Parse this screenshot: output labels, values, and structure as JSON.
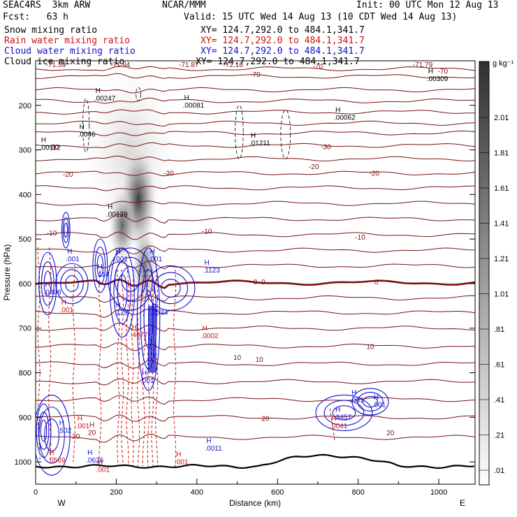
{
  "header": {
    "model": "SEAC4RS  3km ARW",
    "org": "NCAR/MMM",
    "init": "Init: 00 UTC Mon 12 Aug 13",
    "fcst": "Fcst:   63 h",
    "valid": "Valid: 15 UTC Wed 14 Aug 13 (10 CDT Wed 14 Aug 13)"
  },
  "fields": [
    {
      "name": "Snow mixing ratio",
      "xy": "XY= 124.7,292.0 to 484.1,341.7",
      "color": "#000000"
    },
    {
      "name": "Rain water mixing ratio",
      "xy": "XY= 124.7,292.0 to 484.1,341.7",
      "color": "#d01010"
    },
    {
      "name": "Cloud water mixing ratio",
      "xy": "XY= 124.7,292.0 to 484.1,341.7",
      "color": "#1010d0"
    },
    {
      "name": "Cloud ice mixing ratio",
      "xy": "XY= 124.7,292.0 to 484.1,341.7",
      "color": "#000000"
    }
  ],
  "colorbar": {
    "unit": "g kg⁻¹",
    "labels": [
      "2.01",
      "1.81",
      "1.61",
      "1.41",
      "1.21",
      "1.01",
      ".81",
      ".61",
      ".41",
      ".21",
      ".01"
    ]
  },
  "chart_data": {
    "type": "heatmap",
    "xlabel": "Distance (km)",
    "ylabel": "Pressure (hPa)",
    "xlim": [
      0,
      1090
    ],
    "ylim": [
      1050,
      100
    ],
    "x_ticks": [
      "0",
      "200",
      "400",
      "600",
      "800",
      "1000"
    ],
    "y_ticks": [
      "200",
      "300",
      "400",
      "500",
      "600",
      "700",
      "800",
      "900",
      "1000"
    ],
    "x_ends": [
      "W",
      "E"
    ],
    "temperature_labels": [
      {
        "text": "-71.59",
        "x": 50,
        "p": 108
      },
      {
        "text": "-71.94",
        "x": 210,
        "p": 108
      },
      {
        "text": "-71.87",
        "x": 380,
        "p": 108
      },
      {
        "text": "-72.16",
        "x": 490,
        "p": 108
      },
      {
        "text": "-70",
        "x": 700,
        "p": 112
      },
      {
        "text": "-71.79",
        "x": 960,
        "p": 108
      },
      {
        "text": "-70",
        "x": 1010,
        "p": 123
      },
      {
        "text": "-70",
        "x": 545,
        "p": 130
      },
      {
        "text": "-30",
        "x": 45,
        "p": 292
      },
      {
        "text": "-30",
        "x": 720,
        "p": 292
      },
      {
        "text": "-20",
        "x": 80,
        "p": 354
      },
      {
        "text": "-20",
        "x": 330,
        "p": 352
      },
      {
        "text": "-20",
        "x": 690,
        "p": 337
      },
      {
        "text": "-20",
        "x": 840,
        "p": 352
      },
      {
        "text": "-10",
        "x": 40,
        "p": 486
      },
      {
        "text": "-10",
        "x": 425,
        "p": 482
      },
      {
        "text": "-10",
        "x": 805,
        "p": 495
      },
      {
        "text": "0",
        "x": 545,
        "p": 595
      },
      {
        "text": "0",
        "x": 565,
        "p": 595
      },
      {
        "text": "0",
        "x": 845,
        "p": 595
      },
      {
        "text": "10",
        "x": 500,
        "p": 765
      },
      {
        "text": "10",
        "x": 555,
        "p": 769
      },
      {
        "text": "10",
        "x": 830,
        "p": 740
      },
      {
        "text": "20",
        "x": 100,
        "p": 942
      },
      {
        "text": "20",
        "x": 570,
        "p": 902
      },
      {
        "text": "20",
        "x": 880,
        "p": 934
      }
    ],
    "max_labels": [
      {
        "text": ".00247",
        "x": 145,
        "p": 185,
        "field": "ice"
      },
      {
        "text": ".00081",
        "x": 365,
        "p": 200,
        "field": "ice"
      },
      {
        "text": ".00062",
        "x": 740,
        "p": 228,
        "field": "ice"
      },
      {
        "text": ".00309",
        "x": 970,
        "p": 141,
        "field": "ice"
      },
      {
        "text": ".0046",
        "x": 105,
        "p": 265,
        "field": "ice"
      },
      {
        "text": ".00112",
        "x": 10,
        "p": 295,
        "field": "ice"
      },
      {
        "text": ".01211",
        "x": 530,
        "p": 285,
        "field": "ice"
      },
      {
        "text": ".00129",
        "x": 175,
        "p": 445,
        "field": "snow"
      },
      {
        "text": ".001",
        "x": 75,
        "p": 545,
        "field": "cloud"
      },
      {
        "text": ".001",
        "x": 195,
        "p": 545,
        "field": "cloud"
      },
      {
        "text": ".001",
        "x": 280,
        "p": 545,
        "field": "cloud"
      },
      {
        "text": ".114",
        "x": 150,
        "p": 580,
        "field": "cloud"
      },
      {
        "text": ".1123",
        "x": 415,
        "p": 570,
        "field": "cloud"
      },
      {
        "text": ".0498",
        "x": 20,
        "p": 620,
        "field": "cloud"
      },
      {
        "text": ".001",
        "x": 60,
        "p": 660,
        "field": "rain"
      },
      {
        "text": ".129",
        "x": 195,
        "p": 665,
        "field": "cloud"
      },
      {
        "text": ".7534",
        "x": 285,
        "p": 665,
        "field": "cloud"
      },
      {
        "text": ".4677",
        "x": 235,
        "p": 715,
        "field": "rain"
      },
      {
        "text": ".0002",
        "x": 410,
        "p": 718,
        "field": "rain"
      },
      {
        "text": ".001",
        "x": 260,
        "p": 818,
        "field": "cloud"
      },
      {
        "text": ".001",
        "x": 780,
        "p": 862,
        "field": "cloud"
      },
      {
        "text": ".001",
        "x": 835,
        "p": 872,
        "field": "cloud"
      },
      {
        "text": ".3457",
        "x": 740,
        "p": 900,
        "field": "cloud"
      },
      {
        "text": ".0041",
        "x": 730,
        "p": 920,
        "field": "rain"
      },
      {
        "text": ".001",
        "x": 100,
        "p": 920,
        "field": "rain"
      },
      {
        "text": ".502",
        "x": 55,
        "p": 930,
        "field": "cloud"
      },
      {
        "text": "20",
        "x": 130,
        "p": 935,
        "field": "temp"
      },
      {
        "text": ".0011",
        "x": 420,
        "p": 970,
        "field": "cloud"
      },
      {
        "text": ".0569",
        "x": 30,
        "p": 997,
        "field": "rain"
      },
      {
        "text": ".0626",
        "x": 125,
        "p": 997,
        "field": "cloud"
      },
      {
        "text": ".001",
        "x": 150,
        "p": 1018,
        "field": "rain"
      },
      {
        "text": ".001",
        "x": 345,
        "p": 1001,
        "field": "rain"
      }
    ]
  }
}
